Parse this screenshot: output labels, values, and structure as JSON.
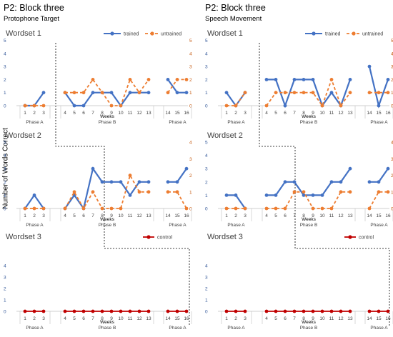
{
  "panels": [
    {
      "title": "P2: Block three",
      "subtitle": "Protophone Target"
    },
    {
      "title": "P2: Block three",
      "subtitle": "Speech Movement"
    }
  ],
  "y_axis_label": "Number of Words Correct",
  "x_axis_label": "Weeks",
  "wordset_titles": [
    "Wordset 1",
    "Wordset 2",
    "Wordset 3"
  ],
  "phase_labels": [
    "Phase A",
    "Phase B",
    "Phase A"
  ],
  "colors": {
    "trained": "#4472C4",
    "untrained": "#ED7D31",
    "control": "#C00000",
    "axis_left": "#2F5597",
    "axis_right": "#C55A11"
  },
  "chart_data": [
    {
      "type": "line",
      "panel": "Protophone Target",
      "wordset": "Wordset 1",
      "categories": [
        "1",
        "2",
        "3",
        "4",
        "5",
        "6",
        "7",
        "8",
        "9",
        "10",
        "11",
        "12",
        "13",
        "14",
        "15",
        "16"
      ],
      "ylim_left": [
        0,
        5
      ],
      "ylim_right": [
        0,
        5
      ],
      "legend": "top-right",
      "series": [
        {
          "name": "trained",
          "axis": "left",
          "values": [
            0,
            0,
            1,
            1,
            0,
            0,
            1,
            1,
            1,
            0,
            1,
            1,
            1,
            2,
            1,
            1
          ]
        },
        {
          "name": "untrained",
          "axis": "right",
          "values": [
            0,
            0,
            0,
            1,
            1,
            1,
            2,
            1,
            0,
            0,
            2,
            1,
            2,
            1,
            2,
            2
          ]
        }
      ]
    },
    {
      "type": "line",
      "panel": "Protophone Target",
      "wordset": "Wordset 2",
      "categories": [
        "1",
        "2",
        "3",
        "4",
        "5",
        "6",
        "7",
        "8",
        "9",
        "10",
        "11",
        "12",
        "13",
        "14",
        "15",
        "16"
      ],
      "ylim_left": [
        0,
        5
      ],
      "ylim_right": [
        0,
        4
      ],
      "series": [
        {
          "name": "trained",
          "axis": "left",
          "values": [
            0,
            1,
            0,
            0,
            1,
            0,
            3,
            2,
            2,
            2,
            1,
            2,
            2,
            2,
            2,
            3
          ]
        },
        {
          "name": "untrained",
          "axis": "right",
          "values": [
            0,
            0,
            0,
            0,
            1,
            0,
            1,
            0,
            0,
            0,
            2,
            1,
            1,
            1,
            1,
            0
          ]
        }
      ]
    },
    {
      "type": "line",
      "panel": "Protophone Target",
      "wordset": "Wordset 3",
      "categories": [
        "1",
        "2",
        "3",
        "4",
        "5",
        "6",
        "7",
        "8",
        "9",
        "10",
        "11",
        "12",
        "13",
        "14",
        "15",
        "16"
      ],
      "ylim_left": [
        0,
        4
      ],
      "legend": "top-right",
      "series": [
        {
          "name": "control",
          "axis": "left",
          "values": [
            0,
            0,
            0,
            0,
            0,
            0,
            0,
            0,
            0,
            0,
            0,
            0,
            0,
            0,
            0,
            0
          ]
        }
      ]
    },
    {
      "type": "line",
      "panel": "Speech Movement",
      "wordset": "Wordset 1",
      "categories": [
        "1",
        "2",
        "3",
        "4",
        "5",
        "6",
        "7",
        "8",
        "9",
        "10",
        "11",
        "12",
        "13",
        "14",
        "15",
        "16"
      ],
      "ylim_left": [
        0,
        5
      ],
      "ylim_right": [
        0,
        5
      ],
      "legend": "top-right",
      "series": [
        {
          "name": "trained",
          "axis": "left",
          "values": [
            1,
            0,
            1,
            2,
            2,
            0,
            2,
            2,
            2,
            0,
            1,
            0,
            2,
            3,
            0,
            2
          ]
        },
        {
          "name": "untrained",
          "axis": "right",
          "values": [
            0,
            0,
            1,
            0,
            1,
            1,
            1,
            1,
            1,
            0,
            2,
            0,
            1,
            1,
            1,
            1
          ]
        }
      ]
    },
    {
      "type": "line",
      "panel": "Speech Movement",
      "wordset": "Wordset 2",
      "categories": [
        "1",
        "2",
        "3",
        "4",
        "5",
        "6",
        "7",
        "8",
        "9",
        "10",
        "11",
        "12",
        "13",
        "14",
        "15",
        "16"
      ],
      "ylim_left": [
        0,
        5
      ],
      "ylim_right": [
        0,
        4
      ],
      "series": [
        {
          "name": "trained",
          "axis": "left",
          "values": [
            1,
            1,
            0,
            1,
            1,
            2,
            2,
            1,
            1,
            1,
            2,
            2,
            3,
            2,
            2,
            3
          ]
        },
        {
          "name": "untrained",
          "axis": "right",
          "values": [
            0,
            0,
            0,
            0,
            0,
            0,
            1,
            1,
            0,
            0,
            0,
            1,
            1,
            0,
            1,
            1
          ]
        }
      ]
    },
    {
      "type": "line",
      "panel": "Speech Movement",
      "wordset": "Wordset 3",
      "categories": [
        "1",
        "2",
        "3",
        "4",
        "5",
        "6",
        "7",
        "8",
        "9",
        "10",
        "11",
        "12",
        "13",
        "14",
        "15",
        "16"
      ],
      "ylim_left": [
        0,
        4
      ],
      "legend": "top-right",
      "series": [
        {
          "name": "control",
          "axis": "left",
          "values": [
            0,
            0,
            0,
            0,
            0,
            0,
            0,
            0,
            0,
            0,
            0,
            0,
            0,
            0,
            0,
            0
          ]
        }
      ]
    }
  ]
}
